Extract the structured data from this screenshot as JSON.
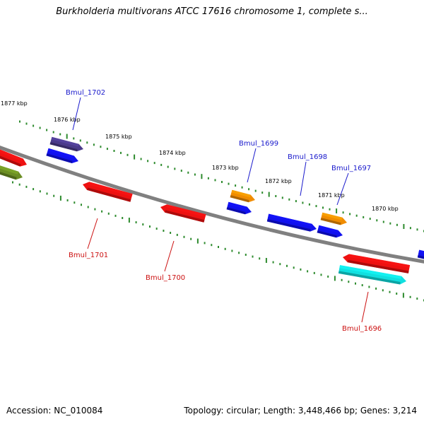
{
  "title": "Burkholderia multivorans ATCC 17616 chromosome 1, complete s...",
  "footer": {
    "accession": "Accession: NC_010084",
    "summary": "Topology: circular; Length: 3,448,466 bp; Genes: 3,214"
  },
  "colors": {
    "backbone": "#808080",
    "tick": "#2e8b2e",
    "label_forward": "#1a1acc",
    "label_reverse": "#cc1111",
    "red": "#ee1111",
    "blue": "#1111ee",
    "orange": "#f08c00",
    "purple": "#4a3a8a",
    "olive": "#6b8e23",
    "cyan": "#11e0e0"
  },
  "ticks": [
    {
      "label": "1877 kbp"
    },
    {
      "label": "1876 kbp"
    },
    {
      "label": "1875 kbp"
    },
    {
      "label": "1874 kbp"
    },
    {
      "label": "1873 kbp"
    },
    {
      "label": "1872 kbp"
    },
    {
      "label": "1871 kbp"
    },
    {
      "label": "1870 kbp"
    }
  ],
  "genes": [
    {
      "name": "Bmul_1702",
      "strand": "forward",
      "color": "purple"
    },
    {
      "name": "Bmul_1701",
      "strand": "reverse",
      "color": "red"
    },
    {
      "name": "Bmul_1700",
      "strand": "reverse",
      "color": "red"
    },
    {
      "name": "Bmul_1699",
      "strand": "forward",
      "color": "orange"
    },
    {
      "name": "Bmul_1698",
      "strand": "forward",
      "color": "blue"
    },
    {
      "name": "Bmul_1697",
      "strand": "forward",
      "color": "orange"
    },
    {
      "name": "Bmul_1696",
      "strand": "reverse",
      "color": "cyan"
    }
  ]
}
